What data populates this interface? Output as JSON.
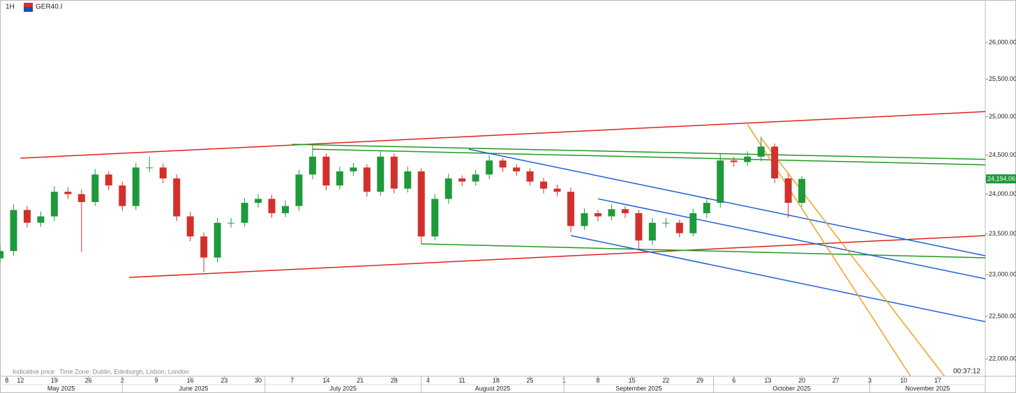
{
  "chart_data": {
    "type": "candlestick",
    "interval": "1H",
    "symbol": "GER40.I",
    "footer_note": "Indicative price",
    "time_zone": "Time Zone: Dublin, Edinburgh, Lisbon, London",
    "countdown": "00:37:12",
    "yscale": "log",
    "ylim": [
      21800,
      26590
    ],
    "yticks": [
      {
        "value": 22000,
        "label": "22,000.00"
      },
      {
        "value": 22500,
        "label": "22,500.00"
      },
      {
        "value": 23000,
        "label": "23,000.00"
      },
      {
        "value": 23500,
        "label": "23,500.00"
      },
      {
        "value": 24000,
        "label": "24,000.00"
      },
      {
        "value": 24500,
        "label": "24,500.00"
      },
      {
        "value": 25000,
        "label": "25,000.00"
      },
      {
        "value": 25500,
        "label": "25,500.00"
      },
      {
        "value": 26000,
        "label": "26,000.00"
      }
    ],
    "xlim": [
      "2025-05-07",
      "2025-11-26"
    ],
    "xticks": [
      {
        "value": "2025-05-08",
        "label": "8"
      },
      {
        "value": "2025-05-12",
        "label": "12"
      },
      {
        "value": "2025-05-19",
        "label": "19"
      },
      {
        "value": "2025-05-26",
        "label": "26"
      },
      {
        "value": "2025-06-02",
        "label": "2"
      },
      {
        "value": "2025-06-09",
        "label": "9"
      },
      {
        "value": "2025-06-16",
        "label": "16"
      },
      {
        "value": "2025-06-23",
        "label": "23"
      },
      {
        "value": "2025-06-30",
        "label": "30"
      },
      {
        "value": "2025-07-07",
        "label": "7"
      },
      {
        "value": "2025-07-14",
        "label": "14"
      },
      {
        "value": "2025-07-21",
        "label": "21"
      },
      {
        "value": "2025-07-28",
        "label": "28"
      },
      {
        "value": "2025-08-04",
        "label": "4"
      },
      {
        "value": "2025-08-11",
        "label": "11"
      },
      {
        "value": "2025-08-18",
        "label": "18"
      },
      {
        "value": "2025-08-25",
        "label": "25"
      },
      {
        "value": "2025-09-01",
        "label": "1"
      },
      {
        "value": "2025-09-08",
        "label": "8"
      },
      {
        "value": "2025-09-15",
        "label": "15"
      },
      {
        "value": "2025-09-22",
        "label": "22"
      },
      {
        "value": "2025-09-29",
        "label": "29"
      },
      {
        "value": "2025-10-06",
        "label": "6"
      },
      {
        "value": "2025-10-13",
        "label": "13"
      },
      {
        "value": "2025-10-20",
        "label": "20"
      },
      {
        "value": "2025-10-27",
        "label": "27"
      },
      {
        "value": "2025-11-03",
        "label": "3"
      },
      {
        "value": "2025-11-10",
        "label": "10"
      },
      {
        "value": "2025-11-17",
        "label": "17"
      }
    ],
    "month_ticks": [
      {
        "value": "2025-05-01",
        "label": "May 2025"
      },
      {
        "value": "2025-06-01",
        "label": "June 2025"
      },
      {
        "value": "2025-07-01",
        "label": "July 2025"
      },
      {
        "value": "2025-08-01",
        "label": "August 2025"
      },
      {
        "value": "2025-09-01",
        "label": "September 2025"
      },
      {
        "value": "2025-10-01",
        "label": "October 2025"
      },
      {
        "value": "2025-11-01",
        "label": "November 2025"
      }
    ],
    "up_color": "#1e9a3a",
    "down_color": "#d3302c",
    "x": [
      "2025-05-07",
      "2025-05-09",
      "2025-05-13",
      "2025-05-15",
      "2025-05-19",
      "2025-05-21",
      "2025-05-23",
      "2025-05-27",
      "2025-05-29",
      "2025-06-02",
      "2025-06-04",
      "2025-06-06",
      "2025-06-10",
      "2025-06-12",
      "2025-06-16",
      "2025-06-18",
      "2025-06-20",
      "2025-06-24",
      "2025-06-26",
      "2025-06-30",
      "2025-07-02",
      "2025-07-04",
      "2025-07-08",
      "2025-07-10",
      "2025-07-14",
      "2025-07-16",
      "2025-07-18",
      "2025-07-22",
      "2025-07-24",
      "2025-07-28",
      "2025-07-30",
      "2025-08-01",
      "2025-08-05",
      "2025-08-07",
      "2025-08-11",
      "2025-08-13",
      "2025-08-15",
      "2025-08-19",
      "2025-08-21",
      "2025-08-25",
      "2025-08-27",
      "2025-08-29",
      "2025-09-02",
      "2025-09-04",
      "2025-09-08",
      "2025-09-10",
      "2025-09-12",
      "2025-09-16",
      "2025-09-18",
      "2025-09-22",
      "2025-09-24",
      "2025-09-26",
      "2025-09-30",
      "2025-10-02",
      "2025-10-06",
      "2025-10-08",
      "2025-10-10",
      "2025-10-14",
      "2025-10-16",
      "2025-10-20"
    ],
    "open": [
      23200,
      23290,
      23800,
      23640,
      23720,
      24030,
      24000,
      23900,
      24250,
      24110,
      23850,
      24340,
      24340,
      24200,
      23720,
      23470,
      23210,
      23640,
      23640,
      23890,
      23940,
      23760,
      23850,
      24250,
      24480,
      24110,
      24290,
      24340,
      24030,
      24480,
      24070,
      24290,
      23470,
      23940,
      24200,
      24160,
      24250,
      24430,
      24340,
      24290,
      24160,
      24070,
      24030,
      23600,
      23760,
      23720,
      23810,
      23760,
      23420,
      23640,
      23640,
      23510,
      23760,
      23890,
      24430,
      24410,
      24480,
      24610,
      24200,
      23890
    ],
    "high": [
      23360,
      23870,
      23850,
      23780,
      24100,
      24090,
      24060,
      24320,
      24290,
      24160,
      24400,
      24480,
      24390,
      24250,
      23780,
      23520,
      23700,
      23700,
      23950,
      24000,
      23990,
      23920,
      24310,
      24640,
      24520,
      24350,
      24400,
      24380,
      24550,
      24520,
      24350,
      24330,
      24000,
      24260,
      24240,
      24310,
      24500,
      24460,
      24380,
      24330,
      24210,
      24120,
      24080,
      23820,
      23800,
      23870,
      23850,
      23800,
      23700,
      23700,
      23680,
      23820,
      23950,
      24520,
      24480,
      24550,
      24740,
      24650,
      24250,
      24230
    ],
    "low": [
      23150,
      23230,
      23580,
      23590,
      23660,
      23940,
      23280,
      23850,
      24050,
      23790,
      23800,
      24280,
      24140,
      23660,
      23410,
      23030,
      23150,
      23580,
      23590,
      23830,
      23700,
      23710,
      23790,
      24190,
      24050,
      24060,
      24230,
      23970,
      23980,
      24010,
      24020,
      23380,
      23420,
      23880,
      24100,
      24110,
      24190,
      24280,
      24230,
      24110,
      24010,
      23970,
      23520,
      23550,
      23660,
      23670,
      23700,
      23300,
      23370,
      23580,
      23460,
      23470,
      23700,
      23830,
      24350,
      24360,
      24420,
      24140,
      23700,
      23840
    ],
    "close": [
      23290,
      23800,
      23640,
      23720,
      24030,
      24000,
      23900,
      24250,
      24110,
      23850,
      24340,
      24340,
      24200,
      23720,
      23470,
      23210,
      23640,
      23640,
      23890,
      23940,
      23760,
      23850,
      24250,
      24480,
      24110,
      24290,
      24340,
      24030,
      24480,
      24070,
      24290,
      23470,
      23940,
      24200,
      24160,
      24250,
      24430,
      24340,
      24290,
      24160,
      24070,
      24030,
      23600,
      23760,
      23720,
      23810,
      23760,
      23420,
      23640,
      23640,
      23510,
      23760,
      23890,
      24430,
      24410,
      24480,
      24610,
      24200,
      23890,
      24194.06
    ],
    "last_value_label": "24,194.06",
    "last_label_color": "#1e9a3a",
    "trendlines": [
      {
        "color": "#e0201b",
        "x": [
          "2025-05-12",
          "2025-11-26"
        ],
        "y": [
          24460,
          25069
        ]
      },
      {
        "color": "#e0201b",
        "x": [
          "2025-06-03",
          "2025-11-26"
        ],
        "y": [
          22968,
          23480
        ]
      },
      {
        "color": "#1f9a1f",
        "x": [
          "2025-07-07",
          "2025-11-26"
        ],
        "y": [
          24639,
          24445
        ]
      },
      {
        "color": "#1f9a1f",
        "x": [
          "2025-07-10",
          "2025-11-26"
        ],
        "y": [
          24576,
          24374
        ]
      },
      {
        "color": "#1f9a1f",
        "x": [
          "2025-08-01",
          "2025-11-26"
        ],
        "y": [
          23378,
          23207
        ]
      },
      {
        "color": "#1f5fd6",
        "x": [
          "2025-08-12",
          "2025-11-26"
        ],
        "y": [
          24576,
          23232
        ]
      },
      {
        "color": "#1f5fd6",
        "x": [
          "2025-09-08",
          "2025-11-26"
        ],
        "y": [
          23941,
          22951
        ]
      },
      {
        "color": "#1f5fd6",
        "x": [
          "2025-09-02",
          "2025-11-26"
        ],
        "y": [
          23480,
          22437
        ]
      },
      {
        "color": "#f0a020",
        "x": [
          "2025-10-08",
          "2025-11-11"
        ],
        "y": [
          24900,
          21800
        ]
      },
      {
        "color": "#f0a020",
        "x": [
          "2025-10-10",
          "2025-11-18"
        ],
        "y": [
          24720,
          21800
        ]
      }
    ]
  }
}
